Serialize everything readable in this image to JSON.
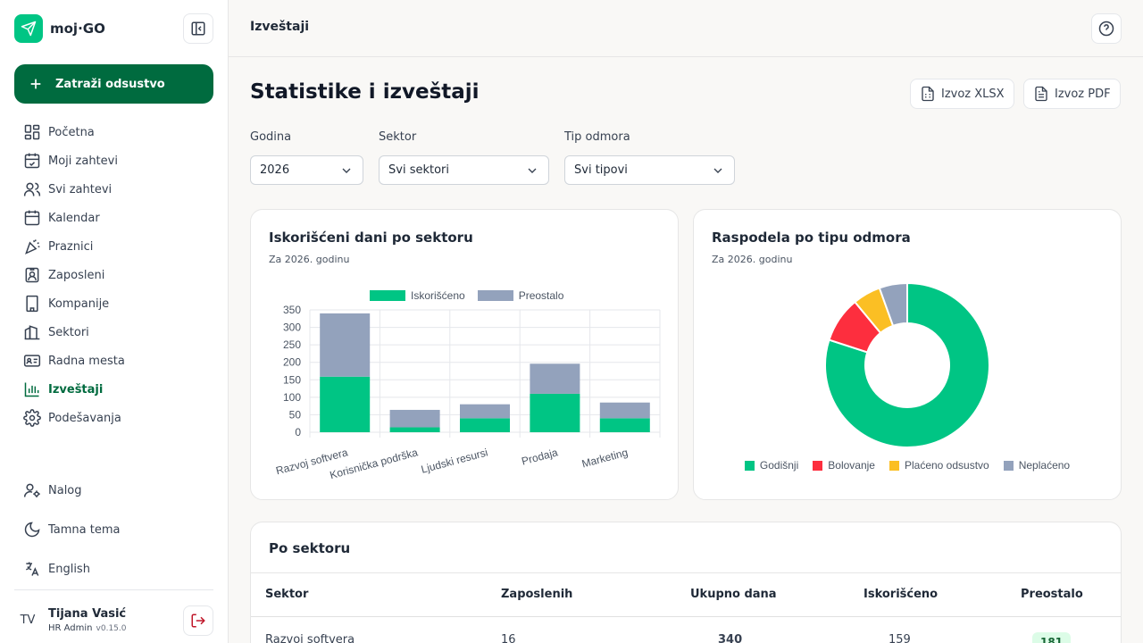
{
  "app": {
    "name": "moj·GO",
    "primary_action": "Zatraži odsustvo"
  },
  "nav": {
    "items": [
      {
        "label": "Početna",
        "icon": "grid-icon"
      },
      {
        "label": "Moji zahtevi",
        "icon": "calendar-check-icon"
      },
      {
        "label": "Svi zahtevi",
        "icon": "users-icon"
      },
      {
        "label": "Kalendar",
        "icon": "calendar-icon"
      },
      {
        "label": "Praznici",
        "icon": "party-icon"
      },
      {
        "label": "Zaposleni",
        "icon": "id-badge-icon"
      },
      {
        "label": "Kompanije",
        "icon": "building-icon"
      },
      {
        "label": "Sektori",
        "icon": "buildings-icon"
      },
      {
        "label": "Radna mesta",
        "icon": "id-card-icon"
      },
      {
        "label": "Izveštaji",
        "icon": "bar-chart-icon",
        "active": true
      },
      {
        "label": "Podešavanja",
        "icon": "gear-icon"
      }
    ],
    "bottom": {
      "account": "Nalog",
      "theme": "Tamna tema",
      "language": "English"
    }
  },
  "user": {
    "initials": "TV",
    "name": "Tijana Vasić",
    "role": "HR Admin",
    "version": "v0.15.0"
  },
  "header": {
    "title": "Izveštaji"
  },
  "main": {
    "title": "Statistike i izveštaji",
    "export_xlsx": "Izvoz XLSX",
    "export_pdf": "Izvoz PDF",
    "filters": {
      "year": {
        "label": "Godina",
        "value": "2026"
      },
      "sector": {
        "label": "Sektor",
        "value": "Svi sektori"
      },
      "type": {
        "label": "Tip odmora",
        "value": "Svi tipovi"
      }
    }
  },
  "bar_card": {
    "title": "Iskorišćeni dani po sektoru",
    "subtitle": "Za 2026. godinu"
  },
  "pie_card": {
    "title": "Raspodela po tipu odmora",
    "subtitle": "Za 2026. godinu"
  },
  "chart_data": [
    {
      "type": "bar",
      "stacked": true,
      "categories": [
        "Razvoj softvera",
        "Korisnička podrška",
        "Ljudski resursi",
        "Prodaja",
        "Marketing"
      ],
      "series": [
        {
          "name": "Iskorišćeno",
          "values": [
            159,
            14,
            40,
            110,
            40
          ],
          "color": "#00c584"
        },
        {
          "name": "Preostalo",
          "values": [
            181,
            50,
            40,
            86,
            45
          ],
          "color": "#93a2bc"
        }
      ],
      "ylim": [
        0,
        350
      ],
      "yticks": [
        0,
        50,
        100,
        150,
        200,
        250,
        300,
        350
      ],
      "grid": true,
      "legend": "top"
    },
    {
      "type": "pie",
      "donut": true,
      "labels": [
        "Godišnji",
        "Bolovanje",
        "Plaćeno odsustvo",
        "Neplaćeno"
      ],
      "values": [
        80,
        9,
        5.5,
        5.5
      ],
      "colors": [
        "#00c584",
        "#fd2e3e",
        "#fbbf24",
        "#93a2bc"
      ],
      "legend": "bottom"
    }
  ],
  "table": {
    "title": "Po sektoru",
    "headers": [
      "Sektor",
      "Zaposlenih",
      "Ukupno dana",
      "Iskorišćeno",
      "Preostalo"
    ],
    "rows": [
      {
        "sector": "Razvoj softvera",
        "employees": "16",
        "total": "340",
        "used": "159",
        "remaining": "181"
      }
    ]
  }
}
